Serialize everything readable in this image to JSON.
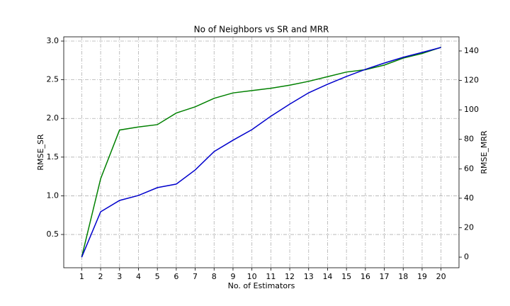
{
  "chart_data": {
    "type": "line",
    "title": "No of Neighbors vs SR and MRR",
    "xlabel": "No. of Estimators",
    "ylabel": "RMSE_SR",
    "y2label": "RMSE_MRR",
    "ylabel_color": "green",
    "y2label_color": "#0000cc",
    "x": [
      1,
      2,
      3,
      4,
      5,
      6,
      7,
      8,
      9,
      10,
      11,
      12,
      13,
      14,
      15,
      16,
      17,
      18,
      19,
      20
    ],
    "series": [
      {
        "name": "SR",
        "color": "green",
        "axis": "y",
        "values": [
          0.21,
          1.22,
          1.85,
          1.89,
          1.92,
          2.07,
          2.15,
          2.26,
          2.33,
          2.36,
          2.39,
          2.43,
          2.48,
          2.54,
          2.6,
          2.63,
          2.69,
          2.78,
          2.84,
          2.92
        ]
      },
      {
        "name": "MRR",
        "color": "#0000cc",
        "axis": "y2",
        "values": [
          0,
          30.8,
          38.5,
          41.9,
          47.2,
          49.6,
          59.2,
          71.7,
          79.4,
          86.6,
          95.7,
          103.9,
          111.6,
          117.4,
          122.7,
          127.5,
          131.8,
          135.7,
          139.0,
          142.4
        ]
      }
    ],
    "xlim": [
      0.05,
      20.95
    ],
    "xticks": [
      1,
      2,
      3,
      4,
      5,
      6,
      7,
      8,
      9,
      10,
      11,
      12,
      13,
      14,
      15,
      16,
      17,
      18,
      19,
      20
    ],
    "ylim": [
      0.07,
      3.055
    ],
    "yticks": [
      0.5,
      {
        "value": 1,
        "label": "1.0"
      },
      1.5,
      {
        "value": 2,
        "label": "2.0"
      },
      2.5,
      {
        "value": 3,
        "label": "3.0"
      }
    ],
    "y2lim": [
      -7.2,
      149.6
    ],
    "y2ticks": [
      0,
      20,
      40,
      60,
      80,
      100,
      120,
      140
    ],
    "grid": true
  }
}
